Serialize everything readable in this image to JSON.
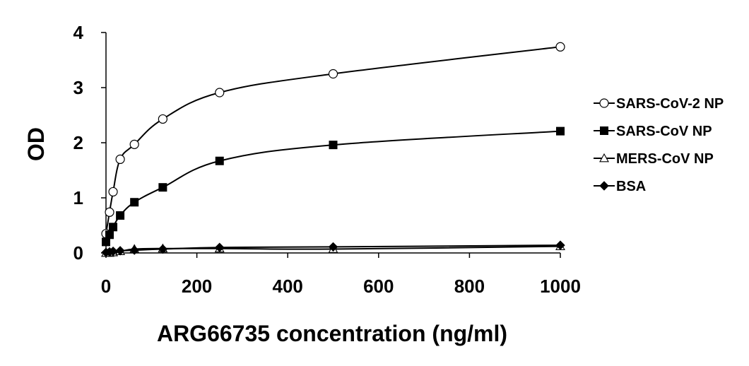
{
  "chart_data": {
    "type": "scatter",
    "xlabel": "ARG66735 concentration (ng/ml)",
    "ylabel": "OD",
    "xlim": [
      0,
      1000
    ],
    "ylim": [
      0,
      4
    ],
    "xticks": [
      "0",
      "200",
      "400",
      "600",
      "800",
      "1000"
    ],
    "yticks": [
      "0",
      "1",
      "2",
      "3",
      "4"
    ],
    "grid": false,
    "legend_position": "right",
    "series": [
      {
        "name": "SARS-CoV-2 NP",
        "marker": "circle-open",
        "color": "#000000",
        "x": [
          0,
          7.8,
          15.6,
          31.25,
          62.5,
          125,
          250,
          500,
          1000
        ],
        "y": [
          0.35,
          0.74,
          1.11,
          1.7,
          1.97,
          2.43,
          2.91,
          3.25,
          3.74
        ]
      },
      {
        "name": "SARS-CoV NP",
        "marker": "square-filled",
        "color": "#000000",
        "x": [
          0,
          7.8,
          15.6,
          31.25,
          62.5,
          125,
          250,
          500,
          1000
        ],
        "y": [
          0.2,
          0.33,
          0.47,
          0.68,
          0.92,
          1.19,
          1.67,
          1.96,
          2.21
        ]
      },
      {
        "name": "MERS-CoV NP",
        "marker": "triangle-open",
        "color": "#000000",
        "x": [
          0,
          7.8,
          15.6,
          31.25,
          62.5,
          125,
          250,
          500,
          1000
        ],
        "y": [
          0.0,
          0.0,
          0.01,
          0.03,
          0.07,
          0.08,
          0.08,
          0.07,
          0.12
        ]
      },
      {
        "name": "BSA",
        "marker": "diamond-filled",
        "color": "#000000",
        "x": [
          0,
          7.8,
          15.6,
          31.25,
          62.5,
          125,
          250,
          500,
          1000
        ],
        "y": [
          0.01,
          0.02,
          0.03,
          0.04,
          0.05,
          0.07,
          0.1,
          0.11,
          0.14
        ]
      }
    ]
  }
}
